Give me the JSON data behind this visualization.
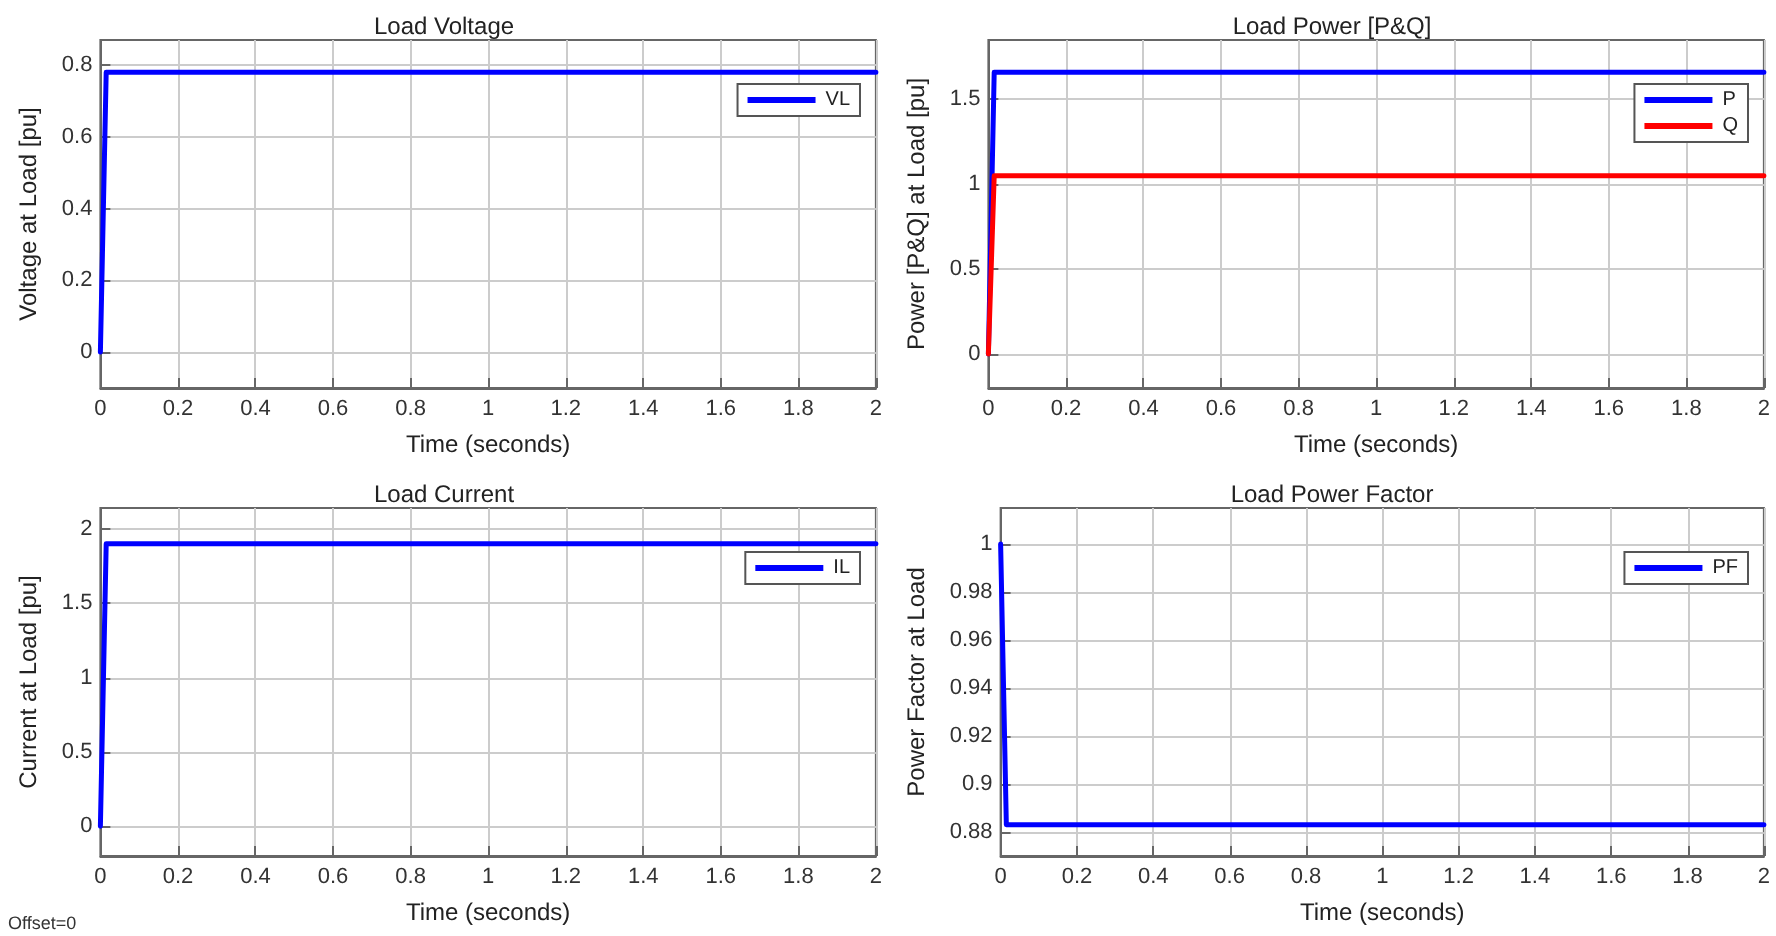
{
  "chart_data": [
    {
      "type": "line",
      "title": "Load Voltage",
      "xlabel": "Time (seconds)",
      "ylabel": "Voltage at Load [pu]",
      "x": [
        0,
        0.015,
        2
      ],
      "series": [
        {
          "name": "VL",
          "color": "#0000ff",
          "values": [
            0,
            0.78,
            0.78
          ]
        }
      ],
      "xlim": [
        0,
        2
      ],
      "xticks": [
        0,
        0.2,
        0.4,
        0.6,
        0.8,
        1,
        1.2,
        1.4,
        1.6,
        1.8,
        2
      ],
      "ylim": [
        -0.1,
        0.87
      ],
      "yticks": [
        0,
        0.2,
        0.4,
        0.6,
        0.8
      ],
      "grid": true,
      "legend": "top right",
      "marker": "none",
      "line_style": "solid"
    },
    {
      "type": "line",
      "title": "Load Power [P&Q]",
      "xlabel": "Time (seconds)",
      "ylabel": "Power [P&Q] at Load [pu]",
      "x": [
        0,
        0.015,
        2
      ],
      "series": [
        {
          "name": "P",
          "color": "#0000ff",
          "values": [
            0,
            1.66,
            1.66
          ]
        },
        {
          "name": "Q",
          "color": "#ff0000",
          "values": [
            0,
            1.05,
            1.05
          ]
        }
      ],
      "xlim": [
        0,
        2
      ],
      "xticks": [
        0,
        0.2,
        0.4,
        0.6,
        0.8,
        1,
        1.2,
        1.4,
        1.6,
        1.8,
        2
      ],
      "ylim": [
        -0.2,
        1.85
      ],
      "yticks": [
        0,
        0.5,
        1,
        1.5
      ],
      "grid": true,
      "legend": "top right",
      "marker": "none",
      "line_style": "solid"
    },
    {
      "type": "line",
      "title": "Load Current",
      "xlabel": "Time (seconds)",
      "ylabel": "Current at Load [pu]",
      "x": [
        0,
        0.015,
        2
      ],
      "series": [
        {
          "name": "IL",
          "color": "#0000ff",
          "values": [
            0,
            1.9,
            1.9
          ]
        }
      ],
      "xlim": [
        0,
        2
      ],
      "xticks": [
        0,
        0.2,
        0.4,
        0.6,
        0.8,
        1,
        1.2,
        1.4,
        1.6,
        1.8,
        2
      ],
      "ylim": [
        -0.2,
        2.14
      ],
      "yticks": [
        0,
        0.5,
        1,
        1.5,
        2
      ],
      "grid": true,
      "legend": "top right",
      "marker": "none",
      "line_style": "solid",
      "annotations": [
        "Offset=0"
      ]
    },
    {
      "type": "line",
      "title": "Load Power Factor",
      "xlabel": "Time (seconds)",
      "ylabel": "Power Factor at Load",
      "x": [
        0,
        0.015,
        2
      ],
      "series": [
        {
          "name": "PF",
          "color": "#0000ff",
          "values": [
            1,
            0.883,
            0.883
          ]
        }
      ],
      "xlim": [
        0,
        2
      ],
      "xticks": [
        0,
        0.2,
        0.4,
        0.6,
        0.8,
        1,
        1.2,
        1.4,
        1.6,
        1.8,
        2
      ],
      "ylim": [
        0.87,
        1.015
      ],
      "yticks": [
        0.88,
        0.9,
        0.92,
        0.94,
        0.96,
        0.98,
        1
      ],
      "grid": true,
      "legend": "top right",
      "marker": "none",
      "line_style": "solid"
    }
  ]
}
